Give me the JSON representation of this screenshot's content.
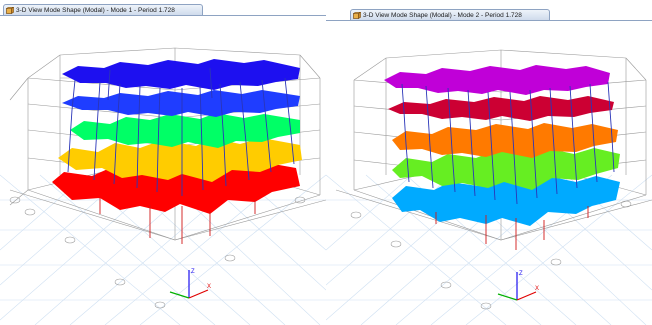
{
  "windows": [
    {
      "title": "3-D View  Mode Shape (Modal) - Mode 1 - Period 1.728",
      "floor_colors": [
        "#ff0000",
        "#ffcc00",
        "#00ff66",
        "#1f3dff",
        "#1d10f0"
      ]
    },
    {
      "title": "3-D View  Mode Shape (Modal) - Mode 2 - Period 1.728",
      "floor_colors": [
        "#00aaff",
        "#66ee22",
        "#ff7a00",
        "#cc0033",
        "#c000d8"
      ]
    }
  ],
  "axes": {
    "z_label": "Z",
    "x_label": "X"
  }
}
